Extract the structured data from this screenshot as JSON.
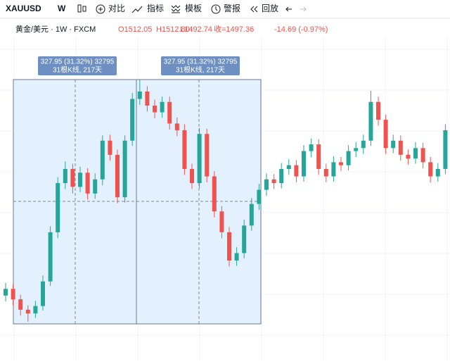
{
  "toolbar": {
    "symbol": "XAUUSD",
    "interval": "W",
    "items": [
      "对比",
      "指标",
      "模板",
      "警报",
      "回放"
    ]
  },
  "legend": {
    "name": "黄金/美元 · 1W · FXCM",
    "open": "O1512.05",
    "high": "H1512.80",
    "low": "L1492.74",
    "close": "收=1497.36",
    "change": "-14.69 (-0.97%)"
  },
  "measures": [
    {
      "line1": "327.95 (31.32%) 32795",
      "line2": "31根K线, 217天"
    },
    {
      "line1": "327.95 (31.32%) 32795",
      "line2": "31根K线, 217天"
    }
  ],
  "chart_data": {
    "type": "candlestick",
    "ylim": [
      1047,
      1375
    ],
    "up_color": "#26a69a",
    "down_color": "#ef5350",
    "open": [
      1085,
      1094,
      1080,
      1066,
      1061,
      1071,
      1104,
      1170,
      1236,
      1255,
      1231,
      1250,
      1222,
      1241,
      1293,
      1274,
      1217,
      1293,
      1349,
      1359,
      1340,
      1331,
      1345,
      1316,
      1307,
      1255,
      1236,
      1302,
      1245,
      1198,
      1170,
      1132,
      1142,
      1179,
      1208,
      1227,
      1241,
      1236,
      1255,
      1260,
      1245,
      1279,
      1288,
      1255,
      1245,
      1264,
      1260,
      1279,
      1283,
      1293,
      1345,
      1321,
      1283,
      1293,
      1274,
      1269,
      1283,
      1264,
      1245,
      1255
    ],
    "high": [
      1102,
      1100,
      1086,
      1072,
      1078,
      1112,
      1178,
      1244,
      1265,
      1262,
      1258,
      1256,
      1249,
      1300,
      1301,
      1281,
      1300,
      1357,
      1375,
      1366,
      1348,
      1352,
      1352,
      1324,
      1315,
      1262,
      1310,
      1309,
      1252,
      1205,
      1177,
      1150,
      1187,
      1216,
      1235,
      1249,
      1248,
      1263,
      1268,
      1267,
      1287,
      1296,
      1295,
      1262,
      1272,
      1271,
      1287,
      1291,
      1301,
      1360,
      1352,
      1328,
      1301,
      1300,
      1281,
      1291,
      1290,
      1271,
      1263,
      1315
    ],
    "low": [
      1077,
      1072,
      1058,
      1050,
      1055,
      1065,
      1098,
      1162,
      1228,
      1222,
      1224,
      1214,
      1215,
      1233,
      1266,
      1209,
      1210,
      1286,
      1341,
      1332,
      1323,
      1324,
      1308,
      1299,
      1247,
      1228,
      1229,
      1237,
      1190,
      1162,
      1124,
      1125,
      1135,
      1172,
      1200,
      1219,
      1228,
      1229,
      1247,
      1237,
      1238,
      1271,
      1247,
      1237,
      1238,
      1252,
      1253,
      1271,
      1275,
      1286,
      1313,
      1275,
      1276,
      1266,
      1261,
      1262,
      1256,
      1237,
      1238,
      1248
    ],
    "close": [
      1094,
      1080,
      1066,
      1061,
      1071,
      1104,
      1170,
      1236,
      1255,
      1231,
      1250,
      1222,
      1241,
      1293,
      1274,
      1217,
      1293,
      1349,
      1359,
      1340,
      1331,
      1345,
      1316,
      1307,
      1255,
      1236,
      1302,
      1245,
      1198,
      1170,
      1132,
      1142,
      1179,
      1208,
      1227,
      1241,
      1236,
      1255,
      1260,
      1245,
      1279,
      1288,
      1255,
      1245,
      1264,
      1260,
      1279,
      1283,
      1293,
      1345,
      1321,
      1283,
      1293,
      1274,
      1269,
      1283,
      1264,
      1245,
      1255,
      1307
    ]
  }
}
